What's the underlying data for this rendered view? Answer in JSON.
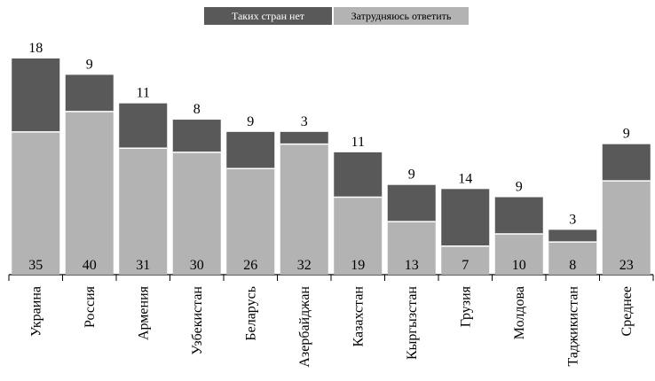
{
  "chart_data": {
    "type": "bar",
    "stacked": true,
    "categories": [
      "Украина",
      "Россия",
      "Армения",
      "Узбекистан",
      "Беларусь",
      "Азербайджан",
      "Казахстан",
      "Кыргызстан",
      "Грузия",
      "Молдова",
      "Таджикистан",
      "Среднее"
    ],
    "series": [
      {
        "name": "Затрудняюсь ответить",
        "color": "#b3b3b3",
        "values": [
          35,
          40,
          31,
          30,
          26,
          32,
          19,
          13,
          7,
          10,
          8,
          23
        ]
      },
      {
        "name": "Таких стран нет",
        "color": "#595959",
        "values": [
          18,
          9,
          11,
          8,
          9,
          3,
          11,
          9,
          14,
          9,
          3,
          9
        ]
      }
    ],
    "ylim": [
      0,
      55
    ],
    "grid": false,
    "legend_position": "top-center"
  }
}
